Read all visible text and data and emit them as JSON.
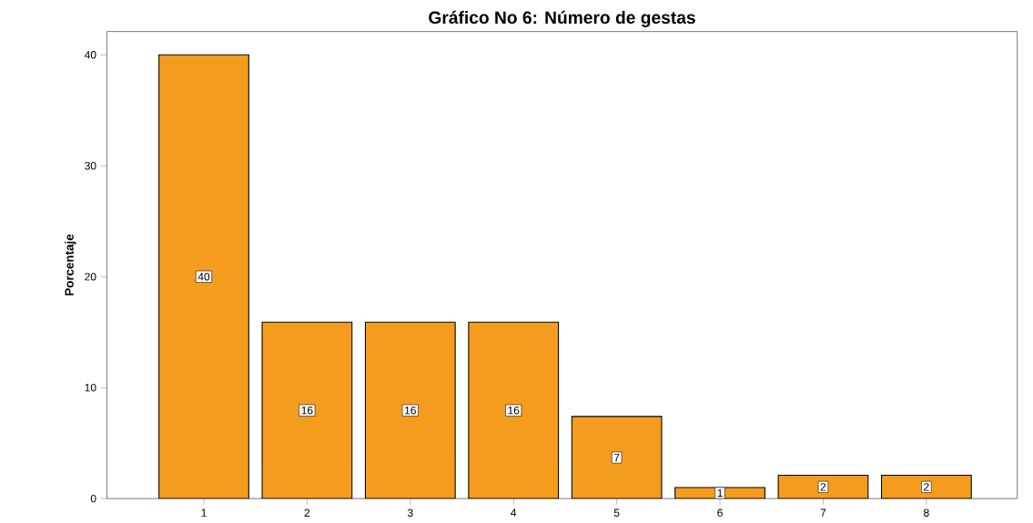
{
  "chart_data": {
    "type": "bar",
    "title": "Gráfico No 6: Número de gestas",
    "ylabel": "Porcentaje",
    "categories": [
      "1",
      "2",
      "3",
      "4",
      "5",
      "6",
      "7",
      "8"
    ],
    "values": [
      40,
      15.9,
      15.9,
      15.9,
      7.4,
      1,
      2.1,
      2.1
    ],
    "value_labels": [
      "40",
      "16",
      "16",
      "16",
      "7",
      "1",
      "2",
      "2"
    ],
    "color": "#f39c1e",
    "ylim": [
      0,
      42.1
    ],
    "yticks": [
      0,
      10,
      20,
      30,
      40
    ],
    "grid": false
  }
}
